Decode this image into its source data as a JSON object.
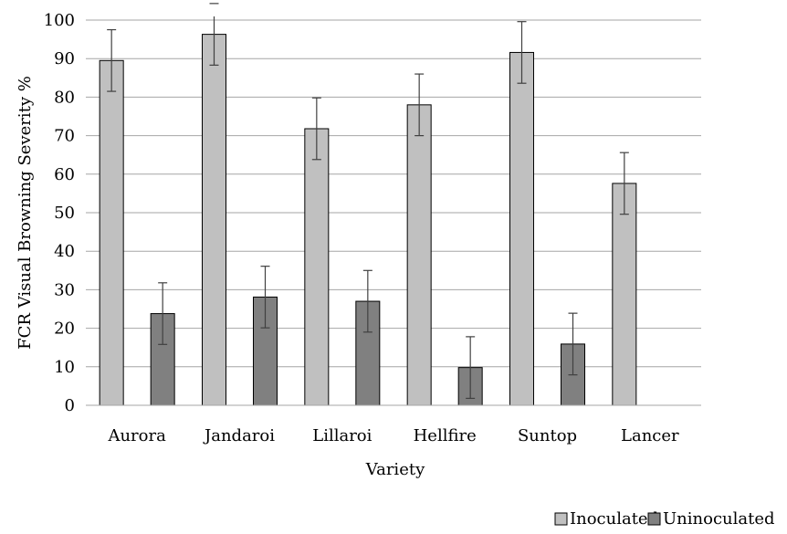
{
  "chart_data": {
    "type": "bar",
    "title": "",
    "xlabel": "Variety",
    "ylabel": "FCR Visual Browning Severity %",
    "ylim": [
      0,
      100
    ],
    "yticks": [
      0,
      10,
      20,
      30,
      40,
      50,
      60,
      70,
      80,
      90,
      100
    ],
    "grid": true,
    "legend_position": "bottom-right",
    "categories": [
      "Aurora",
      "Jandaroi",
      "Lillaroi",
      "Hellfire",
      "Suntop",
      "Lancer"
    ],
    "series": [
      {
        "name": "Inoculated",
        "color": "#c0c0c0",
        "values": [
          89.5,
          96.3,
          71.8,
          78.0,
          91.6,
          57.6
        ],
        "errors": [
          8.0,
          8.0,
          8.0,
          8.0,
          8.0,
          8.0
        ]
      },
      {
        "name": "Uninoculated",
        "color": "#808080",
        "values": [
          23.8,
          28.1,
          27.0,
          9.8,
          15.9,
          null
        ],
        "errors": [
          8.0,
          8.0,
          8.0,
          8.0,
          8.0,
          null
        ]
      }
    ]
  }
}
